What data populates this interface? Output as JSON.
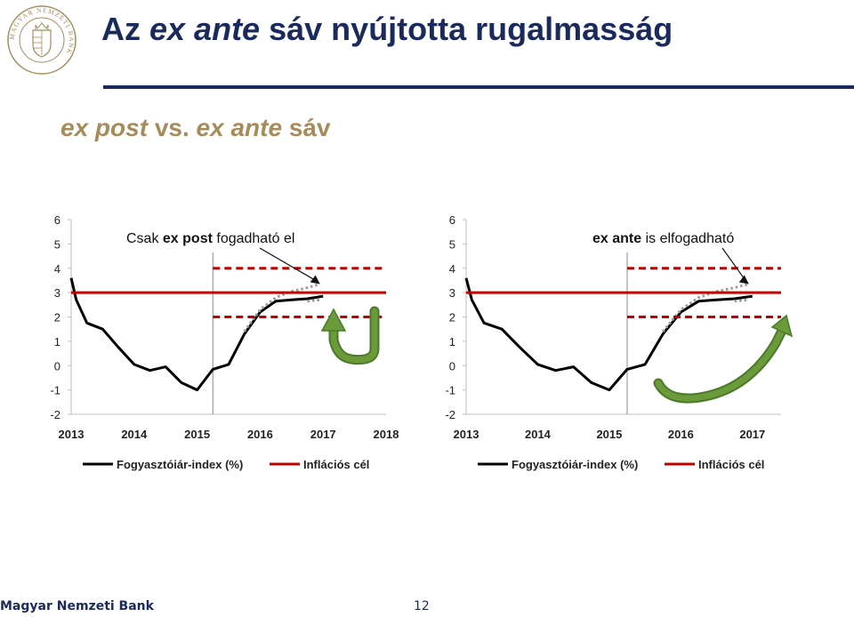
{
  "slide": {
    "title_prefix": "Az",
    "title_em": "ex ante",
    "title_suffix": "sáv nyújtotta rugalmasság",
    "subtitle_em1": "ex post",
    "subtitle_mid": "vs.",
    "subtitle_em2": "ex ante",
    "subtitle_suffix": "sáv",
    "logo_text": "MAGYAR NEMZETI BANK",
    "footer": "Magyar Nemzeti Bank",
    "page_number": "12"
  },
  "colors": {
    "title": "#1a2a5c",
    "subtitle": "#a68b5b",
    "cpi_line": "#000000",
    "forecast_dotted": "#9a9a9a",
    "target_line": "#c00000",
    "arrow_green": "#6b9a3a"
  },
  "chart_data": [
    {
      "type": "line",
      "x_ticks": [
        "2013",
        "2014",
        "2015",
        "2016",
        "2017",
        "2018"
      ],
      "xlim": [
        2013,
        2018
      ],
      "ylim": [
        -2,
        6
      ],
      "y_ticks": [
        -2,
        -1,
        0,
        1,
        2,
        3,
        4,
        5,
        6
      ],
      "grid": false,
      "legend_position": "bottom",
      "annotation": {
        "prefix": "Csak ",
        "bold": "ex post",
        "suffix": " fogadható el"
      },
      "vertical_marker_x": 2015.25,
      "arrow_type": "u-turn",
      "series": [
        {
          "name": "Fogyasztóiár-index (%)",
          "style": "solid",
          "x": [
            2013.0,
            2013.08,
            2013.25,
            2013.5,
            2013.75,
            2014.0,
            2014.25,
            2014.5,
            2014.75,
            2015.0,
            2015.25,
            2015.5,
            2015.75,
            2016.0,
            2016.25,
            2016.5,
            2016.75,
            2017.0
          ],
          "values": [
            3.6,
            2.7,
            1.75,
            1.5,
            0.75,
            0.05,
            -0.2,
            -0.05,
            -0.7,
            -1.0,
            -0.15,
            0.05,
            1.3,
            2.2,
            2.65,
            2.7,
            2.75,
            2.85
          ]
        },
        {
          "name": "forecast",
          "style": "dotted",
          "x": [
            2015.75,
            2016.0,
            2016.25,
            2016.5,
            2016.75,
            2016.95
          ],
          "values": [
            1.4,
            2.3,
            2.8,
            3.05,
            3.2,
            3.35
          ]
        },
        {
          "name": "forecast-lower",
          "style": "dotted",
          "x": [
            2016.75,
            2016.95
          ],
          "values": [
            2.65,
            2.7
          ]
        },
        {
          "name": "Inflációs cél",
          "style": "solid",
          "x": [
            2013,
            2018
          ],
          "values": [
            3,
            3
          ]
        },
        {
          "name": "band-upper",
          "style": "dashed",
          "x": [
            2015.25,
            2018
          ],
          "values": [
            4,
            4
          ]
        },
        {
          "name": "band-lower",
          "style": "dashed",
          "x": [
            2015.25,
            2018
          ],
          "values": [
            2,
            2
          ]
        }
      ]
    },
    {
      "type": "line",
      "x_ticks": [
        "2013",
        "2014",
        "2015",
        "2016",
        "2017"
      ],
      "xlim": [
        2013,
        2017.4
      ],
      "ylim": [
        -2,
        6
      ],
      "y_ticks": [
        -2,
        -1,
        0,
        1,
        2,
        3,
        4,
        5,
        6
      ],
      "grid": false,
      "legend_position": "bottom",
      "annotation": {
        "prefix": "",
        "bold": "ex ante",
        "suffix": " is elfogadható"
      },
      "vertical_marker_x": 2015.25,
      "arrow_type": "sweep",
      "series": [
        {
          "name": "Fogyasztóiár-index (%)",
          "style": "solid",
          "x": [
            2013.0,
            2013.08,
            2013.25,
            2013.5,
            2013.75,
            2014.0,
            2014.25,
            2014.5,
            2014.75,
            2015.0,
            2015.25,
            2015.5,
            2015.75,
            2016.0,
            2016.25,
            2016.5,
            2016.75,
            2017.0
          ],
          "values": [
            3.6,
            2.7,
            1.75,
            1.5,
            0.75,
            0.05,
            -0.2,
            -0.05,
            -0.7,
            -1.0,
            -0.15,
            0.05,
            1.3,
            2.2,
            2.65,
            2.7,
            2.75,
            2.85
          ]
        },
        {
          "name": "forecast",
          "style": "dotted",
          "x": [
            2015.75,
            2016.0,
            2016.25,
            2016.5,
            2016.75,
            2016.95
          ],
          "values": [
            1.4,
            2.3,
            2.8,
            3.05,
            3.2,
            3.35
          ]
        },
        {
          "name": "forecast-lower",
          "style": "dotted",
          "x": [
            2016.75,
            2016.95
          ],
          "values": [
            2.65,
            2.7
          ]
        },
        {
          "name": "Inflációs cél",
          "style": "solid",
          "x": [
            2013,
            2017.4
          ],
          "values": [
            3,
            3
          ]
        },
        {
          "name": "band-upper",
          "style": "dashed",
          "x": [
            2015.25,
            2017.4
          ],
          "values": [
            4,
            4
          ]
        },
        {
          "name": "band-lower",
          "style": "dashed",
          "x": [
            2015.25,
            2017.4
          ],
          "values": [
            2,
            2
          ]
        }
      ]
    }
  ],
  "legend": {
    "cpi_label": "Fogyasztóiár-index (%)",
    "target_label": "Inflációs cél"
  }
}
